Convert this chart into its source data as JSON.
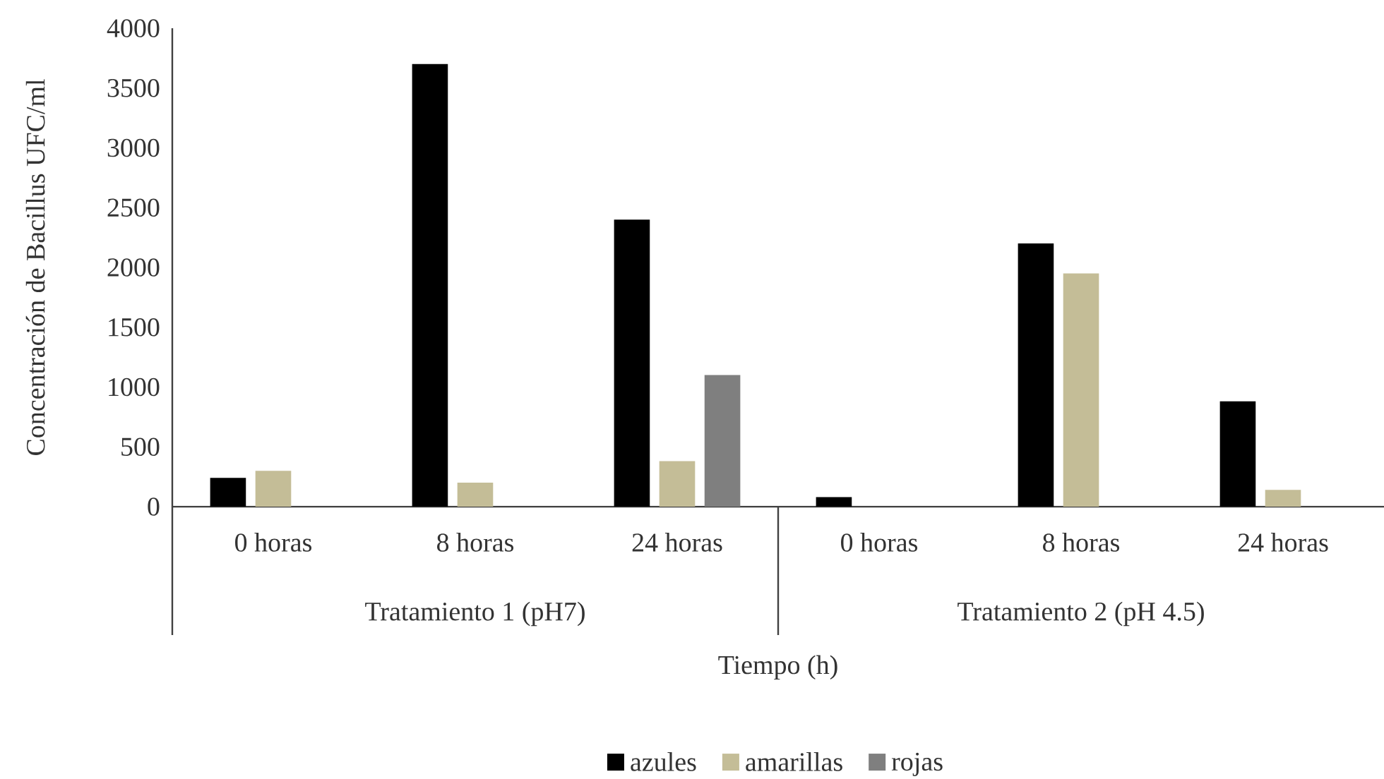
{
  "chart_data": {
    "type": "bar",
    "xlabel": "Tiempo (h)",
    "ylabel": "Concentración de Bacillus UFC/ml",
    "categories": [
      "0 horas",
      "8 horas",
      "24 horas",
      "0 horas",
      "8 horas",
      "24 horas"
    ],
    "annotations": [
      "Tratamiento 1 (pH7)",
      "Tratamiento 2 (pH 4.5)"
    ],
    "series": [
      {
        "name": "azules",
        "color": "#000000",
        "values": [
          240,
          3700,
          2400,
          80,
          2200,
          880
        ]
      },
      {
        "name": "amarillas",
        "color": "#c4bd97",
        "values": [
          300,
          200,
          380,
          0,
          1950,
          140
        ]
      },
      {
        "name": "rojas",
        "color": "#7f7f7f",
        "values": [
          0,
          0,
          1100,
          0,
          0,
          0
        ]
      }
    ],
    "ylim": [
      0,
      4000
    ],
    "yticks": [
      0,
      500,
      1000,
      1500,
      2000,
      2500,
      3000,
      3500,
      4000
    ],
    "legend": "bottom",
    "grid": false
  }
}
